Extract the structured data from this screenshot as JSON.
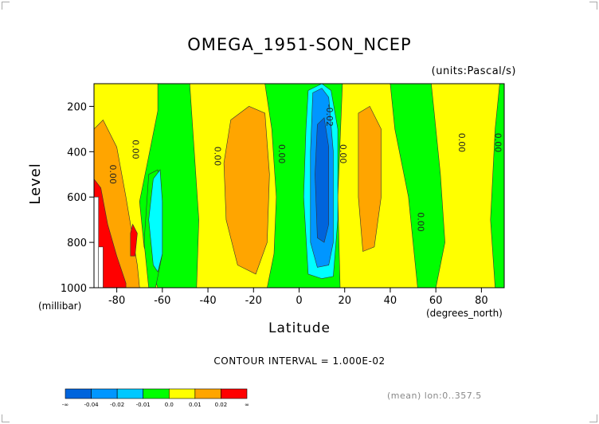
{
  "chart_data": {
    "type": "heatmap",
    "title": "OMEGA_1951-SON_NCEP",
    "units": "(units:Pascal/s)",
    "ylabel": "Level",
    "ylabel_unit": "(millibar)",
    "xlabel": "Latitude",
    "xlabel_unit": "(degrees_north)",
    "xlim": [
      -90,
      90
    ],
    "ylim": [
      1000,
      100
    ],
    "x_ticks": [
      -80,
      -60,
      -40,
      -20,
      0,
      20,
      40,
      60,
      80
    ],
    "y_ticks": [
      200,
      400,
      600,
      800,
      1000
    ],
    "contour_interval": "CONTOUR INTERVAL = 1.000E-02",
    "contour_labels": [
      {
        "text": "0.00",
        "lat": -73,
        "p": 390
      },
      {
        "text": "0.00",
        "lat": -83,
        "p": 500
      },
      {
        "text": "0.00",
        "lat": -37,
        "p": 420
      },
      {
        "text": "0.00",
        "lat": -9,
        "p": 410
      },
      {
        "text": "0.00",
        "lat": 18,
        "p": 410
      },
      {
        "text": "-0.02",
        "lat": 12,
        "p": 240
      },
      {
        "text": "0.00",
        "lat": 52,
        "p": 710
      },
      {
        "text": "0.00",
        "lat": 70,
        "p": 360
      },
      {
        "text": "0.00",
        "lat": 86,
        "p": 360
      }
    ],
    "regions": [
      {
        "name": "positive-0.00-0.01",
        "fill": "#ffff00",
        "poly": [
          [
            -90,
            100
          ],
          [
            -62,
            100
          ],
          [
            -62,
            220
          ],
          [
            -66,
            420
          ],
          [
            -70,
            620
          ],
          [
            -68,
            820
          ],
          [
            -62,
            1000
          ],
          [
            -90,
            1000
          ]
        ]
      },
      {
        "name": "positive-0.00-0.01",
        "fill": "#ffff00",
        "poly": [
          [
            -48,
            100
          ],
          [
            -15,
            100
          ],
          [
            -12,
            300
          ],
          [
            -10,
            600
          ],
          [
            -11,
            850
          ],
          [
            -14,
            1000
          ],
          [
            -45,
            1000
          ],
          [
            -44,
            700
          ],
          [
            -46,
            400
          ]
        ]
      },
      {
        "name": "positive-0.00-0.01",
        "fill": "#ffff00",
        "poly": [
          [
            19,
            100
          ],
          [
            40,
            100
          ],
          [
            42,
            300
          ],
          [
            48,
            600
          ],
          [
            52,
            1000
          ],
          [
            18,
            1000
          ],
          [
            17,
            600
          ]
        ]
      },
      {
        "name": "positive-0.00-0.01",
        "fill": "#ffff00",
        "poly": [
          [
            58,
            100
          ],
          [
            88,
            100
          ],
          [
            86,
            300
          ],
          [
            84,
            700
          ],
          [
            86,
            1000
          ],
          [
            60,
            1000
          ],
          [
            64,
            800
          ],
          [
            62,
            500
          ],
          [
            60,
            300
          ]
        ]
      },
      {
        "name": "positive-0.01-0.02",
        "fill": "#ffa500",
        "poly": [
          [
            -30,
            260
          ],
          [
            -22,
            200
          ],
          [
            -15,
            230
          ],
          [
            -13,
            500
          ],
          [
            -14,
            800
          ],
          [
            -19,
            940
          ],
          [
            -27,
            900
          ],
          [
            -32,
            700
          ],
          [
            -33,
            450
          ]
        ]
      },
      {
        "name": "positive-0.01-0.02",
        "fill": "#ffa500",
        "poly": [
          [
            26,
            230
          ],
          [
            31,
            200
          ],
          [
            36,
            300
          ],
          [
            36,
            600
          ],
          [
            33,
            820
          ],
          [
            28,
            840
          ],
          [
            26,
            600
          ]
        ]
      },
      {
        "name": "positive-0.01-0.02",
        "fill": "#ffa500",
        "poly": [
          [
            -86,
            260
          ],
          [
            -80,
            380
          ],
          [
            -76,
            600
          ],
          [
            -71,
            900
          ],
          [
            -70,
            1000
          ],
          [
            -90,
            1000
          ],
          [
            -90,
            300
          ]
        ]
      },
      {
        "name": "positive-0.02",
        "fill": "#ff0000",
        "poly": [
          [
            -90,
            520
          ],
          [
            -87,
            560
          ],
          [
            -84,
            720
          ],
          [
            -80,
            860
          ],
          [
            -76,
            980
          ],
          [
            -76,
            1000
          ],
          [
            -90,
            1000
          ]
        ]
      },
      {
        "name": "positive-0.02",
        "fill": "#ff0000",
        "poly": [
          [
            -73,
            720
          ],
          [
            -71,
            760
          ],
          [
            -72,
            860
          ],
          [
            -74,
            860
          ],
          [
            -74,
            760
          ]
        ]
      },
      {
        "name": "negative-0.00",
        "fill": "#00ff00",
        "poly": [
          [
            -66,
            500
          ],
          [
            -62,
            480
          ],
          [
            -60,
            620
          ],
          [
            -60,
            850
          ],
          [
            -63,
            1000
          ],
          [
            -66,
            1000
          ],
          [
            -68,
            800
          ]
        ]
      },
      {
        "name": "negative-0.01",
        "fill": "#00ffff",
        "poly": [
          [
            -64,
            520
          ],
          [
            -61,
            480
          ],
          [
            -60,
            620
          ],
          [
            -60,
            850
          ],
          [
            -62,
            930
          ],
          [
            -64,
            900
          ],
          [
            -66,
            700
          ]
        ]
      },
      {
        "name": "negative-0.01",
        "fill": "#00ffff",
        "poly": [
          [
            4,
            130
          ],
          [
            10,
            100
          ],
          [
            14,
            130
          ],
          [
            17,
            300
          ],
          [
            17,
            700
          ],
          [
            15,
            950
          ],
          [
            10,
            960
          ],
          [
            4,
            940
          ],
          [
            2,
            600
          ],
          [
            3,
            300
          ]
        ]
      },
      {
        "name": "negative-0.02",
        "fill": "#0096ff",
        "poly": [
          [
            6,
            140
          ],
          [
            10,
            120
          ],
          [
            13,
            160
          ],
          [
            15,
            400
          ],
          [
            15,
            800
          ],
          [
            13,
            900
          ],
          [
            8,
            910
          ],
          [
            5,
            800
          ],
          [
            5,
            400
          ]
        ]
      },
      {
        "name": "negative-0.03",
        "fill": "#0064dc",
        "poly": [
          [
            8,
            280
          ],
          [
            11,
            250
          ],
          [
            13,
            380
          ],
          [
            13,
            720
          ],
          [
            11,
            800
          ],
          [
            8,
            780
          ],
          [
            7,
            500
          ]
        ]
      },
      {
        "name": "no-data",
        "fill": "#ffffff",
        "poly": [
          [
            -90,
            600
          ],
          [
            -88,
            600
          ],
          [
            -88,
            1000
          ],
          [
            -90,
            1000
          ]
        ]
      },
      {
        "name": "no-data",
        "fill": "#ffffff",
        "poly": [
          [
            -88,
            820
          ],
          [
            -86,
            820
          ],
          [
            -86,
            1000
          ],
          [
            -88,
            1000
          ]
        ]
      }
    ],
    "colorbar": {
      "bins": [
        "#0064dc",
        "#0096ff",
        "#00c8ff",
        "#00ff00",
        "#ffff00",
        "#ffa500",
        "#ff0000"
      ],
      "labels": [
        "-∞",
        "-0.04",
        "-0.02",
        "-0.01",
        "0.0",
        "0.01",
        "0.02",
        "∞"
      ]
    },
    "footer": "(mean) lon:0..357.5"
  }
}
